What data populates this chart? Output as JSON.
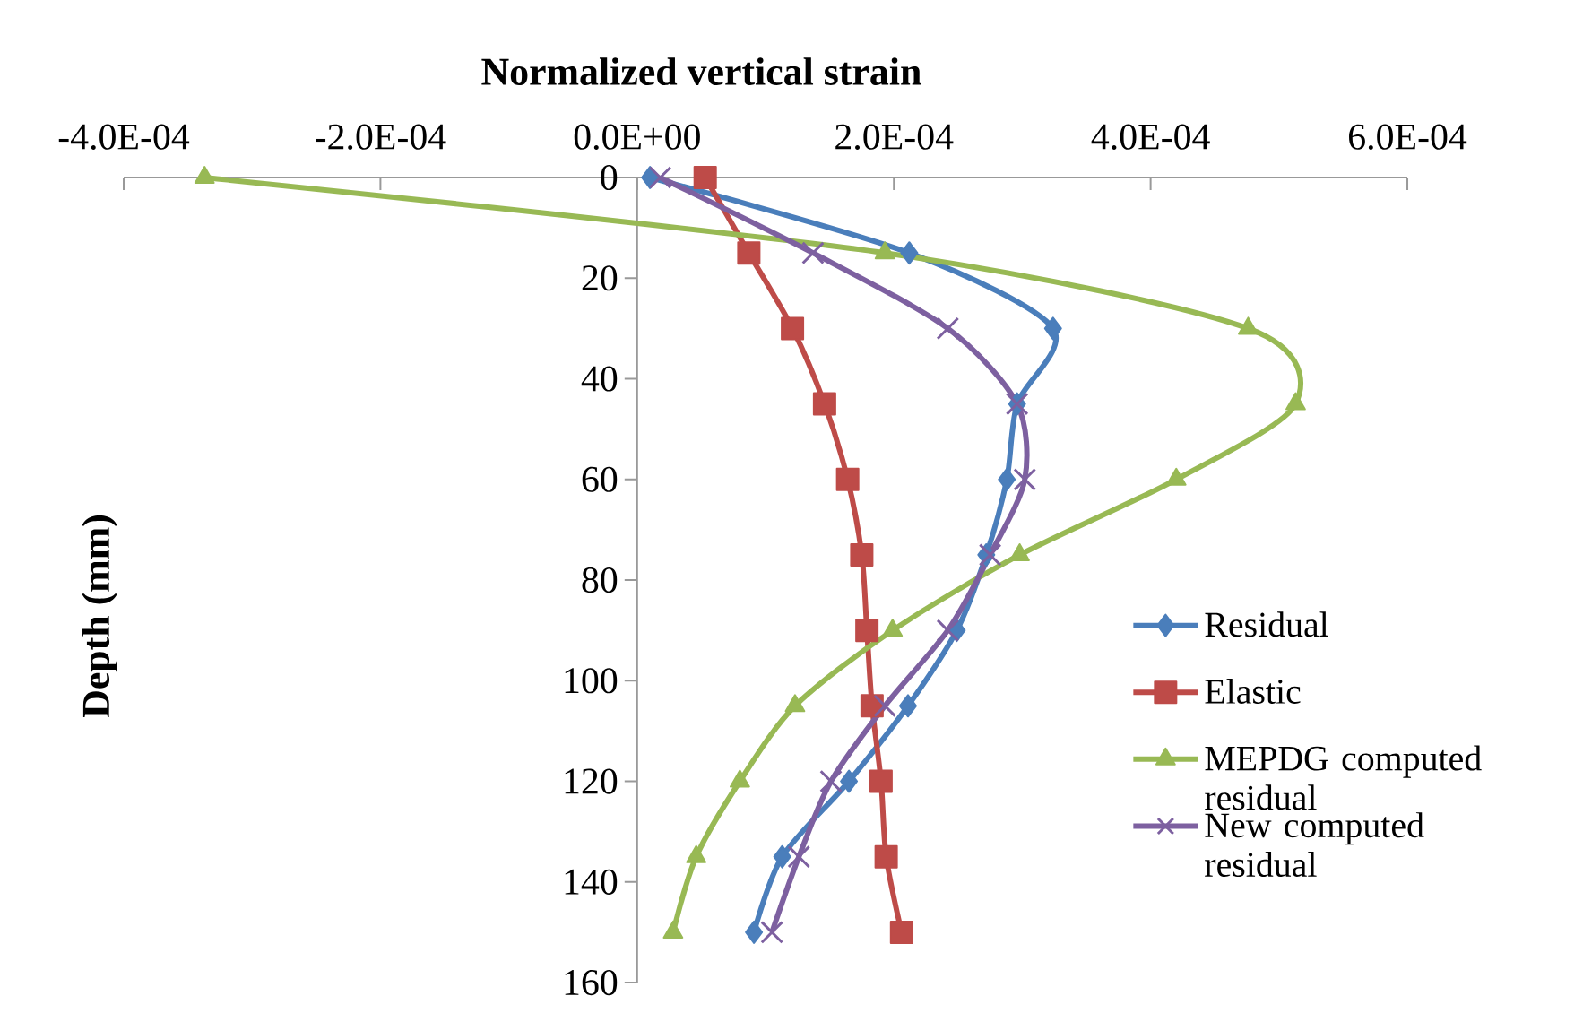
{
  "chart_data": {
    "type": "line",
    "xlabel": "Normalized vertical strain",
    "ylabel": "Depth (mm)",
    "xlim": [
      -0.0004,
      0.0006
    ],
    "ylim": [
      160,
      0
    ],
    "xticks": [
      {
        "value": -0.0004,
        "label": "-4.0E-04"
      },
      {
        "value": -0.0002,
        "label": "-2.0E-04"
      },
      {
        "value": 0,
        "label": "0.0E+00"
      },
      {
        "value": 0.0002,
        "label": "2.0E-04"
      },
      {
        "value": 0.0004,
        "label": "4.0E-04"
      },
      {
        "value": 0.0006,
        "label": "6.0E-04"
      }
    ],
    "yticks": [
      0,
      20,
      40,
      60,
      80,
      100,
      120,
      140,
      160
    ],
    "legend": "right",
    "series": [
      {
        "name": "Residual",
        "color": "#4a7ebb",
        "marker": "diamond",
        "x": [
          1e-05,
          0.000212,
          0.000324,
          0.000296,
          0.000288,
          0.000272,
          0.000249,
          0.000211,
          0.000165,
          0.000113,
          9.1e-05
        ],
        "values": [
          0,
          15,
          30,
          45,
          60,
          75,
          90,
          105,
          120,
          135,
          150
        ]
      },
      {
        "name": "Elastic",
        "color": "#be4b48",
        "marker": "square",
        "x": [
          5.3e-05,
          8.7e-05,
          0.000121,
          0.000146,
          0.000164,
          0.000175,
          0.000179,
          0.000183,
          0.00019,
          0.000194,
          0.000206
        ],
        "values": [
          0,
          15,
          30,
          45,
          60,
          75,
          90,
          105,
          120,
          135,
          150
        ]
      },
      {
        "name": "MEPDG computed residual",
        "color": "#98b954",
        "marker": "triangle",
        "x": [
          -0.000337,
          0.000193,
          0.000476,
          0.000513,
          0.00042,
          0.000298,
          0.000199,
          0.000123,
          8e-05,
          4.6e-05,
          2.8e-05
        ],
        "values": [
          0,
          15,
          30,
          45,
          60,
          75,
          90,
          105,
          120,
          135,
          150
        ]
      },
      {
        "name": "New computed residual",
        "color": "#7d60a0",
        "marker": "cross",
        "x": [
          1.8e-05,
          0.000137,
          0.000242,
          0.000296,
          0.000302,
          0.000275,
          0.000242,
          0.000193,
          0.000151,
          0.000126,
          0.000105
        ],
        "values": [
          0,
          15,
          30,
          45,
          60,
          75,
          90,
          105,
          120,
          135,
          150
        ]
      }
    ]
  }
}
